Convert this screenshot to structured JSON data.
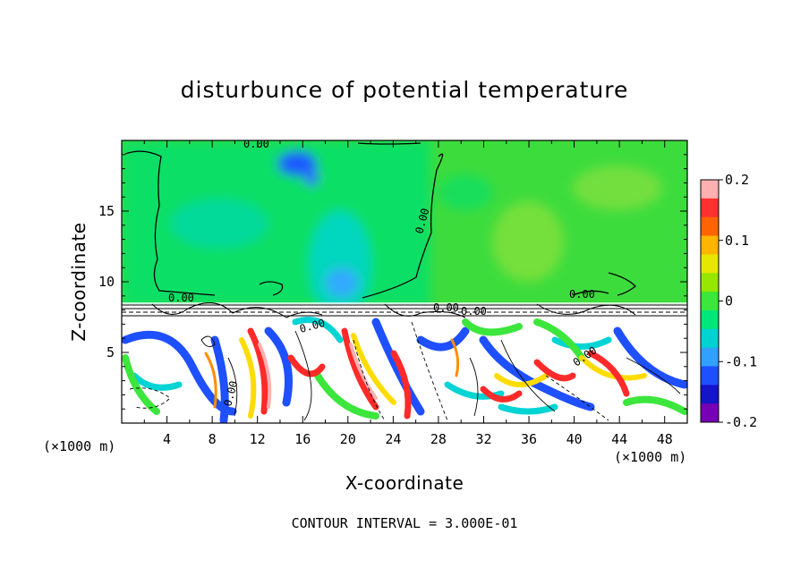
{
  "chart_data": {
    "type": "heatmap",
    "title": "disturbunce of potential temperature",
    "xlabel": "X-coordinate",
    "ylabel": "Z-coordinate",
    "x_unit": "(×1000 m)",
    "xlim": [
      0,
      50
    ],
    "ylim": [
      0,
      20
    ],
    "x_ticks": [
      4,
      8,
      12,
      16,
      20,
      24,
      28,
      32,
      36,
      40,
      44,
      48
    ],
    "y_ticks": [
      5,
      10,
      15
    ],
    "colorbar": {
      "range": [
        -0.2,
        0.2
      ],
      "tick_labels": [
        "0.2",
        "0.1",
        "0",
        "-0.1",
        "-0.2"
      ],
      "colors": [
        "#ffb0b0",
        "#ff3030",
        "#ff6400",
        "#ffb400",
        "#e6e600",
        "#96e600",
        "#3ce63c",
        "#00e678",
        "#00d2d2",
        "#32a0ff",
        "#1e50ff",
        "#1414c8",
        "#7800b4"
      ]
    },
    "contour_labels": [
      "0.00",
      "0.00",
      "0.00",
      "0.00",
      "0.00",
      "0.00",
      "0.00",
      "0.00",
      "0.00"
    ],
    "contour_interval_text": "CONTOUR INTERVAL = 3.000E-01"
  }
}
